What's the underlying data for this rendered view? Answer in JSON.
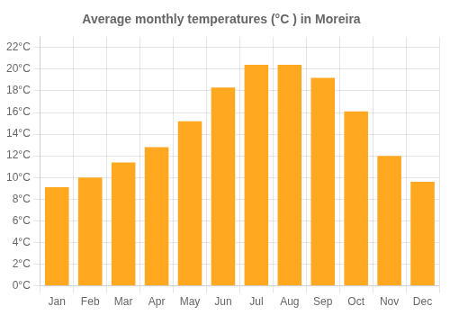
{
  "chart_data": {
    "type": "bar",
    "title": "Average monthly temperatures (°C ) in Moreira",
    "categories": [
      "Jan",
      "Feb",
      "Mar",
      "Apr",
      "May",
      "Jun",
      "Jul",
      "Aug",
      "Sep",
      "Oct",
      "Nov",
      "Dec"
    ],
    "values": [
      9.1,
      10.0,
      11.4,
      12.8,
      15.2,
      18.3,
      20.4,
      20.4,
      19.2,
      16.1,
      12.0,
      9.6
    ],
    "color": "#FFA820",
    "ylim": [
      0,
      23
    ],
    "yticks": [
      {
        "value": 0,
        "label": "0°C"
      },
      {
        "value": 2,
        "label": "2°C"
      },
      {
        "value": 4,
        "label": "4°C"
      },
      {
        "value": 6,
        "label": "6°C"
      },
      {
        "value": 8,
        "label": "8°C"
      },
      {
        "value": 10,
        "label": "10°C"
      },
      {
        "value": 12,
        "label": "12°C"
      },
      {
        "value": 14,
        "label": "14°C"
      },
      {
        "value": 16,
        "label": "16°C"
      },
      {
        "value": 18,
        "label": "18°C"
      },
      {
        "value": 20,
        "label": "20°C"
      },
      {
        "value": 22,
        "label": "22°C"
      }
    ],
    "grid": true
  }
}
